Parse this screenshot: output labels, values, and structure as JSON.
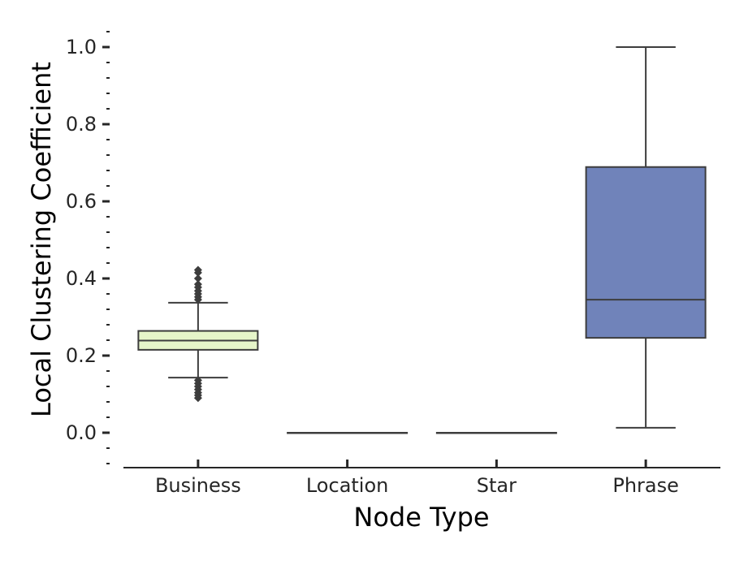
{
  "chart_data": {
    "type": "box",
    "xlabel": "Node Type",
    "ylabel": "Local Clustering Coefficient",
    "categories": [
      "Business",
      "Location",
      "Star",
      "Phrase"
    ],
    "ylim": [
      -0.09,
      1.04
    ],
    "yticks": [
      0.0,
      0.2,
      0.4,
      0.6,
      0.8,
      1.0
    ],
    "ytick_labels": [
      "0.0",
      "0.2",
      "0.4",
      "0.6",
      "0.8",
      "1.0"
    ],
    "minor_ytick_step": 0.04,
    "grid": false,
    "legend": "none",
    "boxes": [
      {
        "category": "Business",
        "whisker_low": 0.143,
        "q1": 0.215,
        "median": 0.239,
        "q3": 0.264,
        "whisker_high": 0.337,
        "fliers_high": [
          0.345,
          0.352,
          0.36,
          0.368,
          0.377,
          0.385,
          0.4,
          0.415,
          0.422
        ],
        "fliers_low": [
          0.136,
          0.128,
          0.12,
          0.112,
          0.104,
          0.097,
          0.09
        ],
        "color": "#e6f5c9"
      },
      {
        "category": "Location",
        "whisker_low": 0.0,
        "q1": 0.0,
        "median": 0.0,
        "q3": 0.0,
        "whisker_high": 0.0,
        "fliers_high": [],
        "fliers_low": [],
        "color": "#e6f5c9"
      },
      {
        "category": "Star",
        "whisker_low": 0.0,
        "q1": 0.0,
        "median": 0.0,
        "q3": 0.0,
        "whisker_high": 0.0,
        "fliers_high": [],
        "fliers_low": [],
        "color": "#e6f5c9"
      },
      {
        "category": "Phrase",
        "whisker_low": 0.013,
        "q1": 0.246,
        "median": 0.345,
        "q3": 0.689,
        "whisker_high": 1.0,
        "fliers_high": [],
        "fliers_low": [],
        "color": "#7083ba"
      }
    ],
    "colors": {
      "line": "#3d3d3d",
      "axis": "#262626"
    }
  }
}
